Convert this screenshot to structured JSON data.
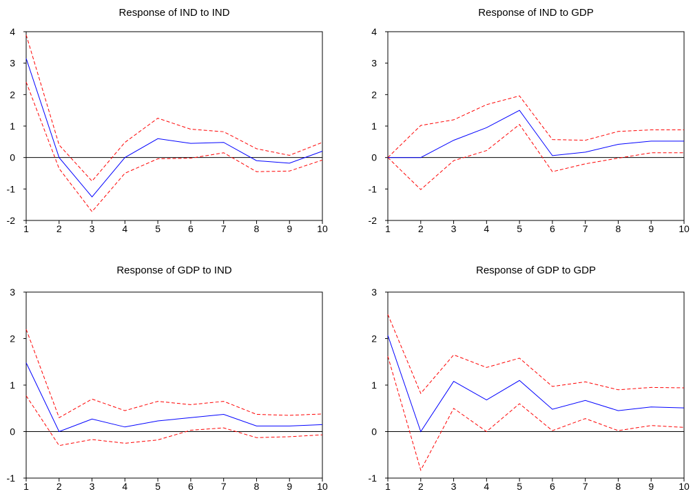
{
  "chart_data": [
    {
      "type": "line",
      "title": "Response of IND to IND",
      "x": [
        1,
        2,
        3,
        4,
        5,
        6,
        7,
        8,
        9,
        10
      ],
      "ylim": [
        -2,
        4
      ],
      "yticks": [
        "-2",
        "-1",
        "0",
        "1",
        "2",
        "3",
        "4"
      ],
      "xticks": [
        "1",
        "2",
        "3",
        "4",
        "5",
        "6",
        "7",
        "8",
        "9",
        "10"
      ],
      "series": [
        {
          "values": [
            3.15,
            0.0,
            -1.25,
            0.0,
            0.6,
            0.45,
            0.48,
            -0.1,
            -0.18,
            0.2
          ],
          "color": "#0000ff",
          "style": "solid"
        },
        {
          "values": [
            3.9,
            0.4,
            -0.75,
            0.48,
            1.25,
            0.9,
            0.82,
            0.28,
            0.07,
            0.48
          ],
          "color": "#ff0000",
          "style": "dashed"
        },
        {
          "values": [
            2.4,
            -0.35,
            -1.72,
            -0.5,
            -0.04,
            -0.02,
            0.15,
            -0.45,
            -0.43,
            -0.08
          ],
          "color": "#ff0000",
          "style": "dashed"
        }
      ],
      "zero_line": true
    },
    {
      "type": "line",
      "title": "Response of IND to GDP",
      "x": [
        1,
        2,
        3,
        4,
        5,
        6,
        7,
        8,
        9,
        10
      ],
      "ylim": [
        -2,
        4
      ],
      "yticks": [
        "-2",
        "-1",
        "0",
        "1",
        "2",
        "3",
        "4"
      ],
      "xticks": [
        "1",
        "2",
        "3",
        "4",
        "5",
        "6",
        "7",
        "8",
        "9",
        "10"
      ],
      "series": [
        {
          "values": [
            0.0,
            0.0,
            0.55,
            0.95,
            1.5,
            0.06,
            0.17,
            0.42,
            0.52,
            0.52
          ],
          "color": "#0000ff",
          "style": "solid"
        },
        {
          "values": [
            0.0,
            1.02,
            1.2,
            1.68,
            1.96,
            0.57,
            0.55,
            0.83,
            0.88,
            0.88
          ],
          "color": "#ff0000",
          "style": "dashed"
        },
        {
          "values": [
            0.0,
            -1.02,
            -0.1,
            0.22,
            1.05,
            -0.45,
            -0.2,
            -0.02,
            0.15,
            0.15
          ],
          "color": "#ff0000",
          "style": "dashed"
        }
      ],
      "zero_line": true
    },
    {
      "type": "line",
      "title": "Response of GDP to IND",
      "x": [
        1,
        2,
        3,
        4,
        5,
        6,
        7,
        8,
        9,
        10
      ],
      "ylim": [
        -1,
        3
      ],
      "yticks": [
        "-1",
        "0",
        "1",
        "2",
        "3"
      ],
      "xticks": [
        "1",
        "2",
        "3",
        "4",
        "5",
        "6",
        "7",
        "8",
        "9",
        "10"
      ],
      "series": [
        {
          "values": [
            1.48,
            0.0,
            0.27,
            0.1,
            0.23,
            0.3,
            0.37,
            0.12,
            0.12,
            0.15
          ],
          "color": "#0000ff",
          "style": "solid"
        },
        {
          "values": [
            2.2,
            0.3,
            0.7,
            0.45,
            0.65,
            0.58,
            0.65,
            0.37,
            0.35,
            0.38
          ],
          "color": "#ff0000",
          "style": "dashed"
        },
        {
          "values": [
            0.77,
            -0.3,
            -0.17,
            -0.25,
            -0.18,
            0.03,
            0.08,
            -0.13,
            -0.11,
            -0.07
          ],
          "color": "#ff0000",
          "style": "dashed"
        }
      ],
      "zero_line": true
    },
    {
      "type": "line",
      "title": "Response of GDP to GDP",
      "x": [
        1,
        2,
        3,
        4,
        5,
        6,
        7,
        8,
        9,
        10
      ],
      "ylim": [
        -1,
        3
      ],
      "yticks": [
        "-1",
        "0",
        "1",
        "2",
        "3"
      ],
      "xticks": [
        "1",
        "2",
        "3",
        "4",
        "5",
        "6",
        "7",
        "8",
        "9",
        "10"
      ],
      "series": [
        {
          "values": [
            2.07,
            0.0,
            1.08,
            0.68,
            1.1,
            0.48,
            0.67,
            0.45,
            0.53,
            0.51
          ],
          "color": "#0000ff",
          "style": "solid"
        },
        {
          "values": [
            2.52,
            0.82,
            1.65,
            1.38,
            1.58,
            0.97,
            1.07,
            0.9,
            0.95,
            0.94
          ],
          "color": "#ff0000",
          "style": "dashed"
        },
        {
          "values": [
            1.62,
            -0.83,
            0.5,
            0.0,
            0.6,
            0.02,
            0.28,
            0.02,
            0.13,
            0.09
          ],
          "color": "#ff0000",
          "style": "dashed"
        }
      ],
      "zero_line": true
    }
  ]
}
